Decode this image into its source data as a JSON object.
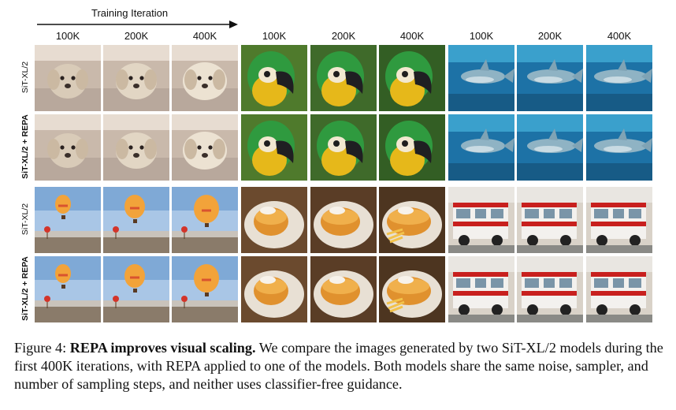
{
  "figure": {
    "axis_label": "Training Iteration",
    "column_labels": [
      "100K",
      "200K",
      "400K",
      "100K",
      "200K",
      "400K",
      "100K",
      "200K",
      "400K"
    ],
    "row_labels": [
      "SiT-XL/2",
      "SiT-XL/2 + REPA",
      "SiT-XL/2",
      "SiT-XL/2 + REPA"
    ],
    "groups": [
      "dog",
      "parrot",
      "shark",
      "balloon",
      "burger",
      "fire-truck"
    ]
  },
  "caption": {
    "label": "Figure 4:",
    "title": "REPA improves visual scaling.",
    "text": "We compare the images generated by two SiT-XL/2 models during the first 400K iterations, with REPA applied to one of the models. Both models share the same noise, sampler, and number of sampling steps, and neither uses classifier-free guidance."
  }
}
